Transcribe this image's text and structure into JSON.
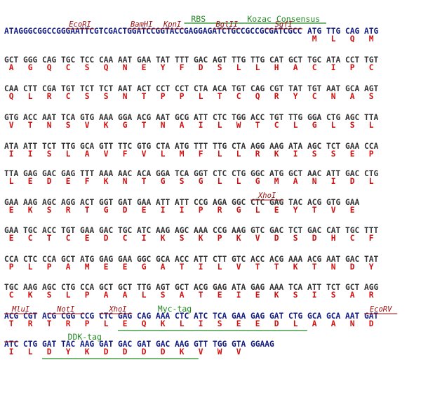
{
  "lines": [
    {
      "prefix": "ATAGGGCGGCCGGGAATTCGTCGACTGGATCCGGTACCGAGGAGATCTGCCGCCGCGATCGCC",
      "codons": [
        "ATG",
        "TTG",
        "CAG",
        "ATG"
      ],
      "aminoacids": [
        "M",
        "L",
        "Q",
        "M"
      ],
      "annotations": [
        {
          "label": "RBS"
        },
        {
          "label": "Kozac Consensus"
        },
        {
          "label": "EcoRI"
        },
        {
          "label": "BamHI"
        },
        {
          "label": "KpnI"
        },
        {
          "label": "BglII"
        },
        {
          "label": "SgfI"
        }
      ]
    },
    {
      "codons": [
        "GCT",
        "GGG",
        "CAG",
        "TGC",
        "TCC",
        "CAA",
        "AAT",
        "GAA",
        "TAT",
        "TTT",
        "GAC",
        "AGT",
        "TTG",
        "TTG",
        "CAT",
        "GCT",
        "TGC",
        "ATA",
        "CCT",
        "TGT"
      ],
      "aminoacids": [
        "A",
        "G",
        "Q",
        "C",
        "S",
        "Q",
        "N",
        "E",
        "Y",
        "F",
        "D",
        "S",
        "L",
        "L",
        "H",
        "A",
        "C",
        "I",
        "P",
        "C"
      ]
    },
    {
      "codons": [
        "CAA",
        "CTT",
        "CGA",
        "TGT",
        "TCT",
        "TCT",
        "AAT",
        "ACT",
        "CCT",
        "CCT",
        "CTA",
        "ACA",
        "TGT",
        "CAG",
        "CGT",
        "TAT",
        "TGT",
        "AAT",
        "GCA",
        "AGT"
      ],
      "aminoacids": [
        "Q",
        "L",
        "R",
        "C",
        "S",
        "S",
        "N",
        "T",
        "P",
        "P",
        "L",
        "T",
        "C",
        "Q",
        "R",
        "Y",
        "C",
        "N",
        "A",
        "S"
      ]
    },
    {
      "codons": [
        "GTG",
        "ACC",
        "AAT",
        "TCA",
        "GTG",
        "AAA",
        "GGA",
        "ACG",
        "AAT",
        "GCG",
        "ATT",
        "CTC",
        "TGG",
        "ACC",
        "TGT",
        "TTG",
        "GGA",
        "CTG",
        "AGC",
        "TTA"
      ],
      "aminoacids": [
        "V",
        "T",
        "N",
        "S",
        "V",
        "K",
        "G",
        "T",
        "N",
        "A",
        "I",
        "L",
        "W",
        "T",
        "C",
        "L",
        "G",
        "L",
        "S",
        "L"
      ]
    },
    {
      "codons": [
        "ATA",
        "ATT",
        "TCT",
        "TTG",
        "GCA",
        "GTT",
        "TTC",
        "GTG",
        "CTA",
        "ATG",
        "TTT",
        "TTG",
        "CTA",
        "AGG",
        "AAG",
        "ATA",
        "AGC",
        "TCT",
        "GAA",
        "CCA"
      ],
      "aminoacids": [
        "I",
        "I",
        "S",
        "L",
        "A",
        "V",
        "F",
        "V",
        "L",
        "M",
        "F",
        "L",
        "L",
        "R",
        "K",
        "I",
        "S",
        "S",
        "E",
        "P"
      ]
    },
    {
      "codons": [
        "TTA",
        "GAG",
        "GAC",
        "GAG",
        "TTT",
        "AAA",
        "AAC",
        "ACA",
        "GGA",
        "TCA",
        "GGT",
        "CTC",
        "CTG",
        "GGC",
        "ATG",
        "GCT",
        "AAC",
        "ATT",
        "GAC",
        "CTG"
      ],
      "aminoacids": [
        "L",
        "E",
        "D",
        "E",
        "F",
        "K",
        "N",
        "T",
        "G",
        "S",
        "G",
        "L",
        "L",
        "G",
        "M",
        "A",
        "N",
        "I",
        "D",
        "L"
      ]
    },
    {
      "codons": [
        "GAA",
        "AAG",
        "AGC",
        "AGG",
        "ACT",
        "GGT",
        "GAT",
        "GAA",
        "ATT",
        "ATT",
        "CCG",
        "AGA",
        "GGC",
        "CTC",
        "GAG",
        "TAC",
        "ACG",
        "GTG",
        "GAA"
      ],
      "aminoacids": [
        "E",
        "K",
        "S",
        "R",
        "T",
        "G",
        "D",
        "E",
        "I",
        "I",
        "P",
        "R",
        "G",
        "L",
        "E",
        "Y",
        "T",
        "V",
        "E"
      ],
      "annotations": [
        {
          "label": "XhoI"
        }
      ]
    },
    {
      "codons": [
        "GAA",
        "TGC",
        "ACC",
        "TGT",
        "GAA",
        "GAC",
        "TGC",
        "ATC",
        "AAG",
        "AGC",
        "AAA",
        "CCG",
        "AAG",
        "GTC",
        "GAC",
        "TCT",
        "GAC",
        "CAT",
        "TGC",
        "TTT"
      ],
      "aminoacids": [
        "E",
        "C",
        "T",
        "C",
        "E",
        "D",
        "C",
        "I",
        "K",
        "S",
        "K",
        "P",
        "K",
        "V",
        "D",
        "S",
        "D",
        "H",
        "C",
        "F"
      ]
    },
    {
      "codons": [
        "CCA",
        "CTC",
        "CCA",
        "GCT",
        "ATG",
        "GAG",
        "GAA",
        "GGC",
        "GCA",
        "ACC",
        "ATT",
        "CTT",
        "GTC",
        "ACC",
        "ACG",
        "AAA",
        "ACG",
        "AAT",
        "GAC",
        "TAT"
      ],
      "aminoacids": [
        "P",
        "L",
        "P",
        "A",
        "M",
        "E",
        "E",
        "G",
        "A",
        "T",
        "I",
        "L",
        "V",
        "T",
        "T",
        "K",
        "T",
        "N",
        "D",
        "Y"
      ]
    },
    {
      "codons": [
        "TGC",
        "AAG",
        "AGC",
        "CTG",
        "CCA",
        "GCT",
        "GCT",
        "TTG",
        "AGT",
        "GCT",
        "ACG",
        "GAG",
        "ATA",
        "GAG",
        "AAA",
        "TCA",
        "ATT",
        "TCT",
        "GCT",
        "AGG"
      ],
      "aminoacids": [
        "C",
        "K",
        "S",
        "L",
        "P",
        "A",
        "A",
        "L",
        "S",
        "A",
        "T",
        "E",
        "I",
        "E",
        "K",
        "S",
        "I",
        "S",
        "A",
        "R"
      ]
    },
    {
      "codons": [
        "ACG",
        "CGT",
        "ACG",
        "CGG",
        "CCG",
        "CTC",
        "GAG",
        "CAG",
        "AAA",
        "CTC",
        "ATC",
        "TCA",
        "GAA",
        "GAG",
        "GAT",
        "CTG",
        "GCA",
        "GCA",
        "AAT",
        "GAT"
      ],
      "aminoacids": [
        "T",
        "R",
        "T",
        "R",
        "P",
        "L",
        "E",
        "Q",
        "K",
        "L",
        "I",
        "S",
        "E",
        "E",
        "D",
        "L",
        "A",
        "A",
        "N",
        "D"
      ],
      "annotations": [
        {
          "label": "MluI"
        },
        {
          "label": "NotI"
        },
        {
          "label": "XhoI"
        },
        {
          "label": "Myc-tag"
        },
        {
          "label": "EcoRV"
        }
      ]
    },
    {
      "codons": [
        "ATC",
        "CTG",
        "GAT",
        "TAC",
        "AAG",
        "GAT",
        "GAC",
        "GAT",
        "GAC",
        "AAG",
        "GTT",
        "TGG",
        "GTA",
        "GGAAG"
      ],
      "aminoacids": [
        "I",
        "L",
        "D",
        "Y",
        "K",
        "D",
        "D",
        "D",
        "D",
        "K",
        "V",
        "W",
        "V"
      ],
      "annotations": [
        {
          "label": "DDK-tag"
        }
      ]
    }
  ]
}
